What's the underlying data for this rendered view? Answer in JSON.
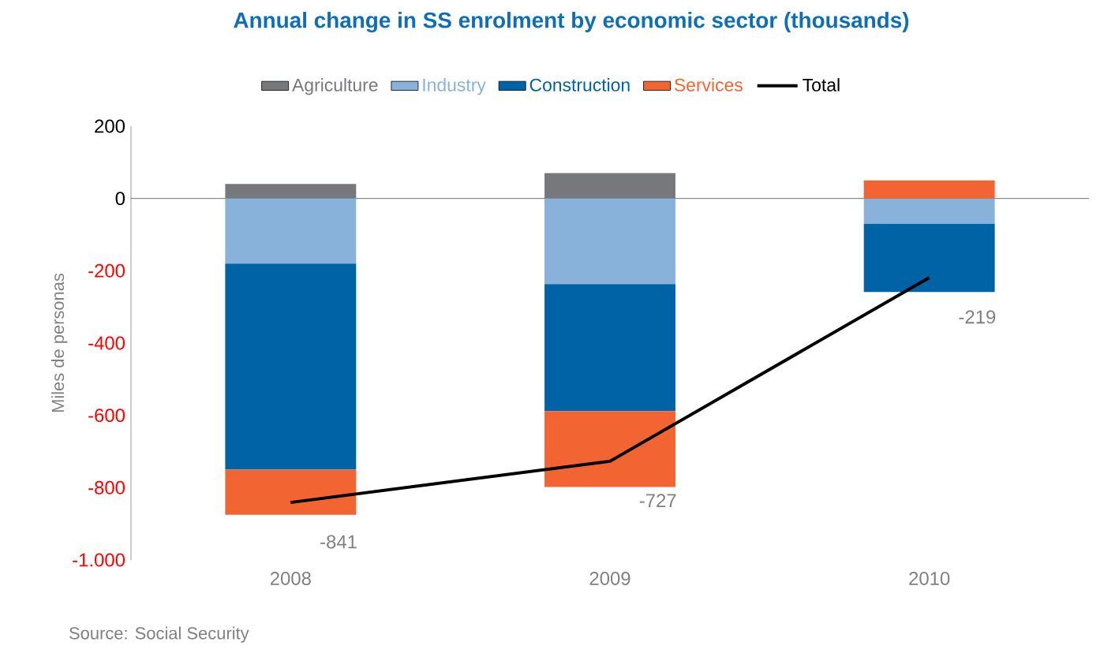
{
  "chart_data": {
    "type": "bar",
    "stacked": true,
    "title": "Annual change in SS enrolment by economic sector (thousands)",
    "ylabel": "Miles de personas",
    "categories": [
      "2008",
      "2009",
      "2010"
    ],
    "series": [
      {
        "name": "Agriculture",
        "color": "#77787b",
        "values": [
          40,
          70,
          0
        ]
      },
      {
        "name": "Industry",
        "color": "#88b2da",
        "values": [
          -180,
          -237,
          -70
        ]
      },
      {
        "name": "Construction",
        "color": "#0063a6",
        "values": [
          -570,
          -351,
          -189
        ]
      },
      {
        "name": "Services",
        "color": "#f26532",
        "values": [
          -125,
          -210,
          50
        ]
      },
      {
        "name": "Total",
        "type": "line",
        "color": "#000000",
        "values": [
          -841,
          -727,
          -219
        ],
        "value_labels": [
          "-841",
          "-727",
          "-219"
        ]
      }
    ],
    "ylim": [
      -1000,
      200
    ],
    "yticks": [
      {
        "value": -1000,
        "label": "-1.000"
      },
      -800,
      -600,
      -400,
      -200,
      0,
      200
    ],
    "legend": "top",
    "annotations": [
      "Source: Social Security"
    ]
  }
}
